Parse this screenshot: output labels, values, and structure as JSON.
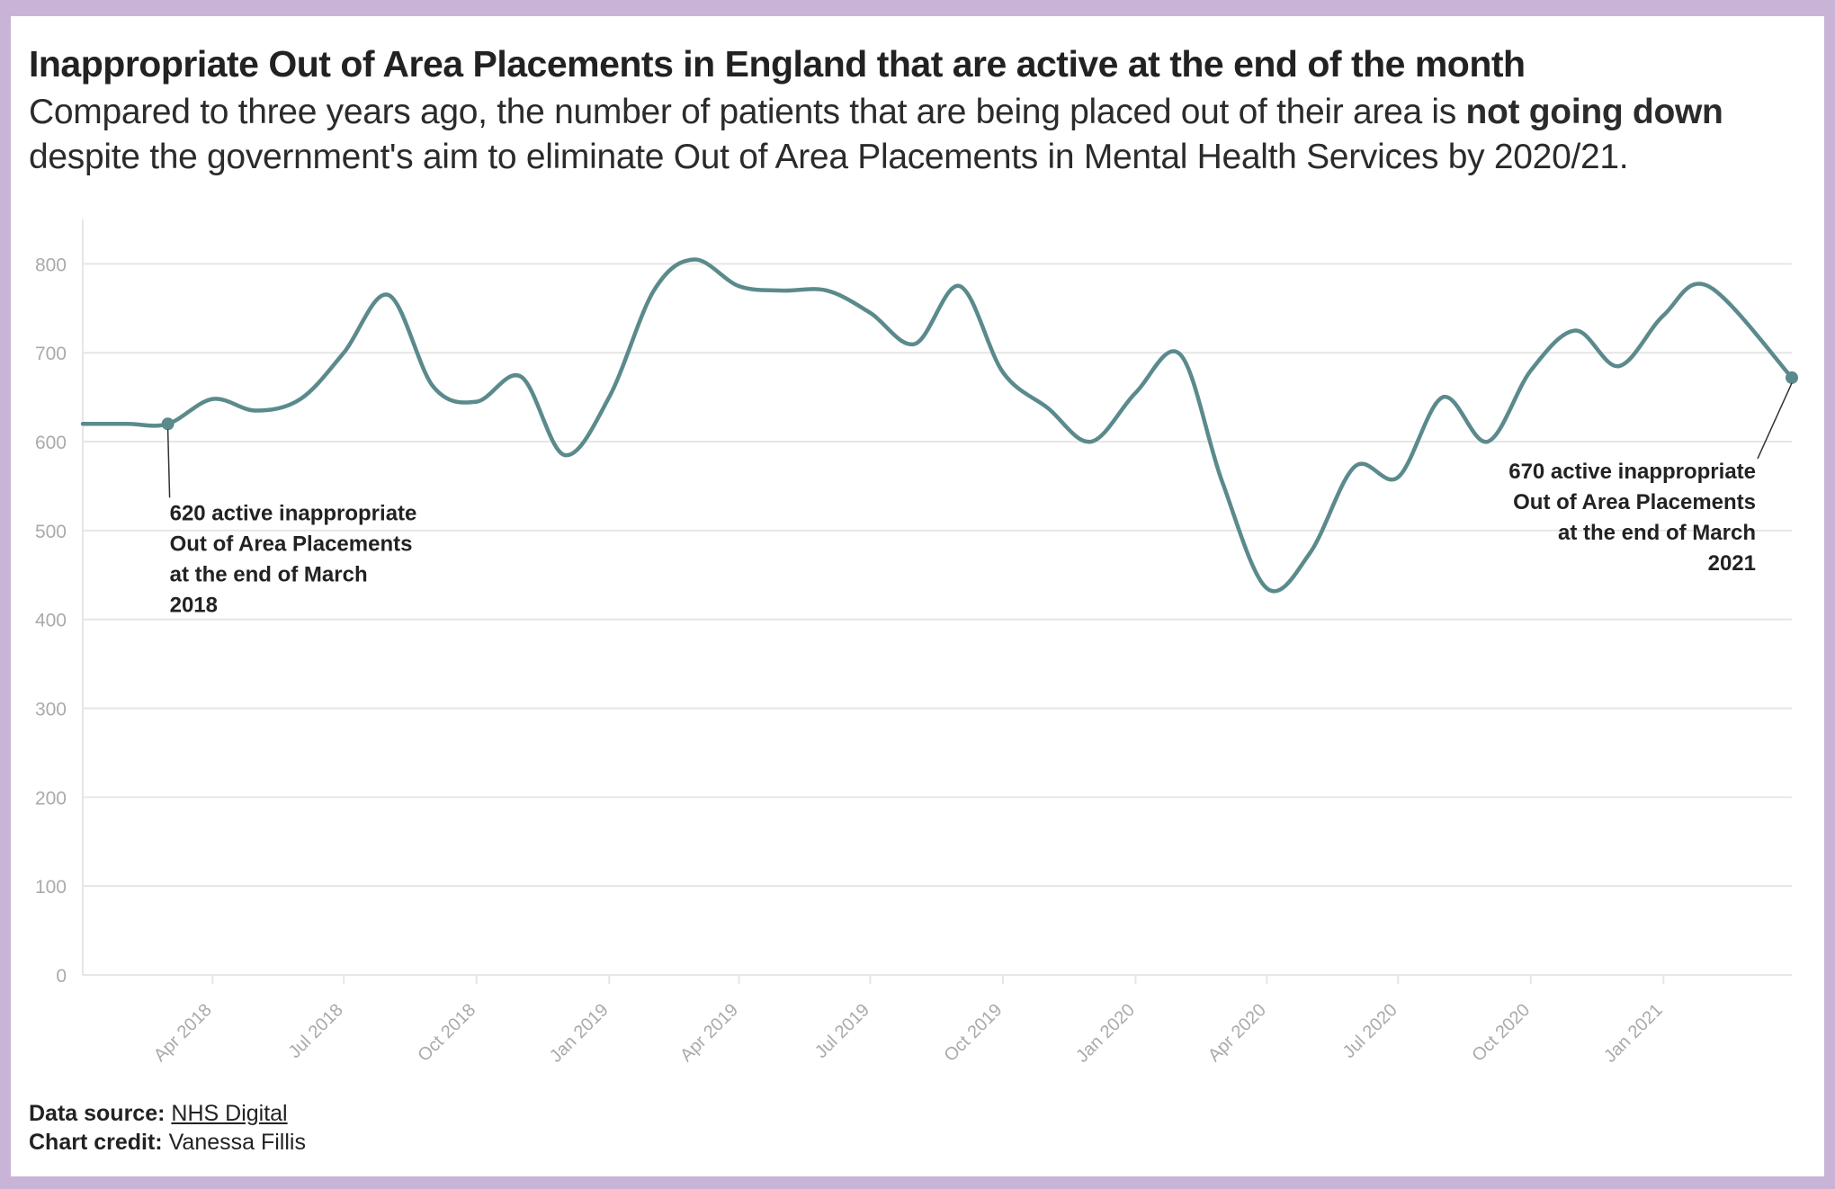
{
  "title": "Inappropriate Out of Area Placements in England that are active at the end of the month",
  "subtitle": {
    "before": "Compared to three years ago, the number of patients that are being placed out of their area is ",
    "emphasis": "not going down",
    "after": " despite the government's aim to eliminate Out of Area Placements in Mental Health Services by 2020/21."
  },
  "footer": {
    "source_label": "Data source:",
    "source_link": "NHS Digital",
    "credit_label": "Chart credit:",
    "credit_name": "Vanessa Fillis"
  },
  "colors": {
    "line": "#5b8a8c",
    "grid": "#e6e6e6",
    "tick_text": "#aaaaaa",
    "border": "#c9b4d8"
  },
  "chart_data": {
    "type": "line",
    "title": "Inappropriate Out of Area Placements in England that are active at the end of the month",
    "xlabel": "",
    "ylabel": "",
    "ylim": [
      0,
      850
    ],
    "yticks": [
      0,
      100,
      200,
      300,
      400,
      500,
      600,
      700,
      800
    ],
    "xlim": [
      "2018-01-01",
      "2021-03-31"
    ],
    "xticks": [
      {
        "date": "2018-04-01",
        "label": "Apr 2018"
      },
      {
        "date": "2018-07-01",
        "label": "Jul 2018"
      },
      {
        "date": "2018-10-01",
        "label": "Oct 2018"
      },
      {
        "date": "2019-01-01",
        "label": "Jan 2019"
      },
      {
        "date": "2019-04-01",
        "label": "Apr 2019"
      },
      {
        "date": "2019-07-01",
        "label": "Jul 2019"
      },
      {
        "date": "2019-10-01",
        "label": "Oct 2019"
      },
      {
        "date": "2020-01-01",
        "label": "Jan 2020"
      },
      {
        "date": "2020-04-01",
        "label": "Apr 2020"
      },
      {
        "date": "2020-07-01",
        "label": "Jul 2020"
      },
      {
        "date": "2020-10-01",
        "label": "Oct 2020"
      },
      {
        "date": "2021-01-01",
        "label": "Jan 2021"
      }
    ],
    "grid": true,
    "legend": "none",
    "series": [
      {
        "color": "#5b8a8c",
        "points": [
          {
            "x": "2018-01-01",
            "y": 620
          },
          {
            "x": "2018-02-01",
            "y": 620
          },
          {
            "x": "2018-03-01",
            "y": 620
          },
          {
            "x": "2018-04-01",
            "y": 648
          },
          {
            "x": "2018-05-01",
            "y": 635
          },
          {
            "x": "2018-06-01",
            "y": 648
          },
          {
            "x": "2018-07-01",
            "y": 700
          },
          {
            "x": "2018-08-01",
            "y": 765
          },
          {
            "x": "2018-09-01",
            "y": 662
          },
          {
            "x": "2018-10-01",
            "y": 645
          },
          {
            "x": "2018-11-01",
            "y": 673
          },
          {
            "x": "2018-12-01",
            "y": 585
          },
          {
            "x": "2019-01-01",
            "y": 650
          },
          {
            "x": "2019-02-01",
            "y": 770
          },
          {
            "x": "2019-03-01",
            "y": 805
          },
          {
            "x": "2019-04-01",
            "y": 775
          },
          {
            "x": "2019-05-01",
            "y": 770
          },
          {
            "x": "2019-06-01",
            "y": 770
          },
          {
            "x": "2019-07-01",
            "y": 745
          },
          {
            "x": "2019-08-01",
            "y": 710
          },
          {
            "x": "2019-09-01",
            "y": 775
          },
          {
            "x": "2019-10-01",
            "y": 678
          },
          {
            "x": "2019-11-01",
            "y": 638
          },
          {
            "x": "2019-12-01",
            "y": 600
          },
          {
            "x": "2020-01-01",
            "y": 655
          },
          {
            "x": "2020-02-01",
            "y": 698
          },
          {
            "x": "2020-03-01",
            "y": 555
          },
          {
            "x": "2020-04-01",
            "y": 435
          },
          {
            "x": "2020-05-01",
            "y": 475
          },
          {
            "x": "2020-06-01",
            "y": 572
          },
          {
            "x": "2020-07-01",
            "y": 560
          },
          {
            "x": "2020-08-01",
            "y": 650
          },
          {
            "x": "2020-09-01",
            "y": 600
          },
          {
            "x": "2020-10-01",
            "y": 680
          },
          {
            "x": "2020-11-01",
            "y": 725
          },
          {
            "x": "2020-12-01",
            "y": 685
          },
          {
            "x": "2021-01-01",
            "y": 742
          },
          {
            "x": "2021-02-01",
            "y": 775
          },
          {
            "x": "2021-03-31",
            "y": 672
          }
        ]
      }
    ],
    "annotations": [
      {
        "x": "2018-03-01",
        "y": 620,
        "lines": [
          "620 active inappropriate",
          "Out of Area Placements",
          "at the end of March",
          "2018"
        ],
        "align": "left"
      },
      {
        "x": "2021-03-31",
        "y": 672,
        "lines": [
          "670 active inappropriate",
          "Out of Area Placements",
          "at the end of March",
          "2021"
        ],
        "align": "right"
      }
    ]
  }
}
